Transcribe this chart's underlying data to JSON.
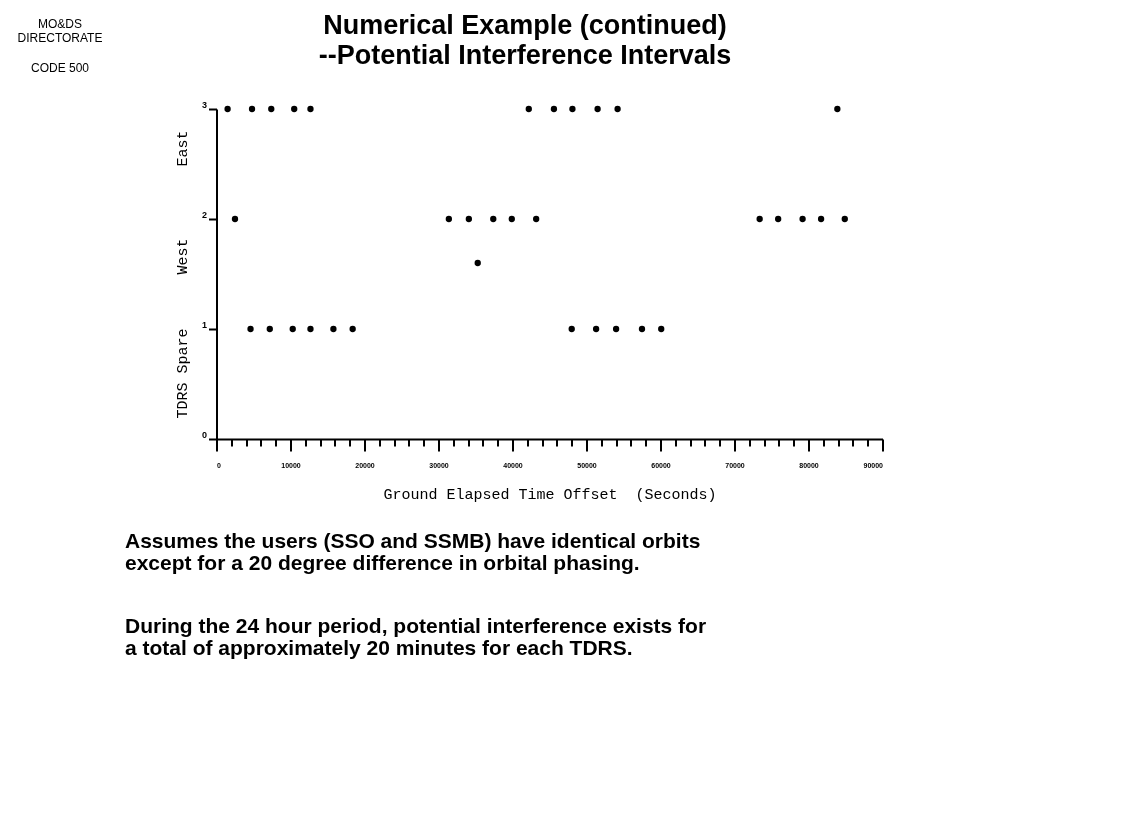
{
  "chart_data": {
    "type": "scatter",
    "title": "Numerical Example (continued)\n--Potential Interference Intervals",
    "xlabel": "Ground Elapsed Time Offset  (Seconds)",
    "ylabel": "TDRS Spare      West        East",
    "series": [
      {
        "color": "#000000",
        "x": [
          1500,
          4800,
          7400,
          10500,
          12700,
          42200,
          45600,
          48100,
          51500,
          54200,
          83900,
          2500,
          31400,
          34100,
          37400,
          39900,
          43200,
          73400,
          75900,
          79200,
          81700,
          84900,
          4600,
          7200,
          10300,
          12700,
          15800,
          18400,
          48000,
          51300,
          54000,
          57500,
          60100,
          35300
        ],
        "values": [
          3,
          3,
          3,
          3,
          3,
          3,
          3,
          3,
          3,
          3,
          3,
          2,
          2,
          2,
          2,
          2,
          2,
          2,
          2,
          2,
          2,
          2,
          1,
          1,
          1,
          1,
          1,
          1,
          1,
          1,
          1,
          1,
          1,
          1.6
        ]
      }
    ],
    "xlim": [
      0,
      90000
    ],
    "ylim": [
      0,
      3
    ],
    "xticks": [
      0,
      {
        "value": 2000,
        "label": null
      },
      {
        "value": 4000,
        "label": null
      },
      {
        "value": 6000,
        "label": null
      },
      {
        "value": 8000,
        "label": null
      },
      10000,
      {
        "value": 12000,
        "label": null
      },
      {
        "value": 14000,
        "label": null
      },
      {
        "value": 16000,
        "label": null
      },
      {
        "value": 18000,
        "label": null
      },
      20000,
      {
        "value": 22000,
        "label": null
      },
      {
        "value": 24000,
        "label": null
      },
      {
        "value": 26000,
        "label": null
      },
      {
        "value": 28000,
        "label": null
      },
      30000,
      {
        "value": 32000,
        "label": null
      },
      {
        "value": 34000,
        "label": null
      },
      {
        "value": 36000,
        "label": null
      },
      {
        "value": 38000,
        "label": null
      },
      40000,
      {
        "value": 42000,
        "label": null
      },
      {
        "value": 44000,
        "label": null
      },
      {
        "value": 46000,
        "label": null
      },
      {
        "value": 48000,
        "label": null
      },
      50000,
      {
        "value": 52000,
        "label": null
      },
      {
        "value": 54000,
        "label": null
      },
      {
        "value": 56000,
        "label": null
      },
      {
        "value": 58000,
        "label": null
      },
      60000,
      {
        "value": 62000,
        "label": null
      },
      {
        "value": 64000,
        "label": null
      },
      {
        "value": 66000,
        "label": null
      },
      {
        "value": 68000,
        "label": null
      },
      70000,
      {
        "value": 72000,
        "label": null
      },
      {
        "value": 74000,
        "label": null
      },
      {
        "value": 76000,
        "label": null
      },
      {
        "value": 78000,
        "label": null
      },
      80000,
      {
        "value": 82000,
        "label": null
      },
      {
        "value": 84000,
        "label": null
      },
      {
        "value": 86000,
        "label": null
      },
      {
        "value": 88000,
        "label": null
      },
      90000
    ],
    "yticks": [
      0,
      1,
      2,
      3
    ],
    "grid": false,
    "marker": "circle",
    "annotations": [
      "MO&DS\nDIRECTORATE",
      "CODE 500",
      "Assumes the users (SSO and SSMB) have identical orbits\nexcept for a 20 degree difference in orbital phasing.",
      "During the 24 hour period, potential interference exists for\na total of approximately 20 minutes for each TDRS."
    ]
  }
}
